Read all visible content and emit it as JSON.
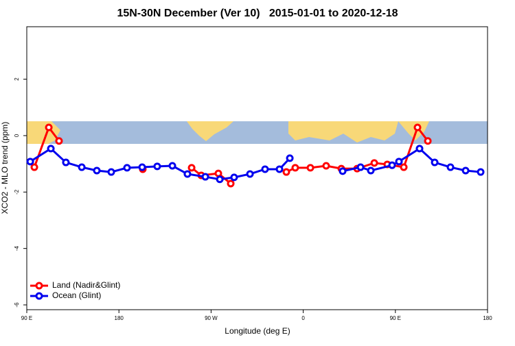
{
  "chart_data": {
    "type": "line",
    "title": "15N-30N December (Ver 10)   2015-01-01 to 2020-12-18",
    "x_label": "Longitude (deg E)",
    "y_label": "XCO2 - MLO trend (ppm)",
    "xlim": [
      90,
      540
    ],
    "ylim": [
      -6.17,
      3.86
    ],
    "xticks": [
      {
        "value": 90,
        "label": "90 E"
      },
      {
        "value": 180,
        "label": "180"
      },
      {
        "value": 270,
        "label": "90 W"
      },
      {
        "value": 360,
        "label": "0"
      },
      {
        "value": 450,
        "label": "90 E"
      },
      {
        "value": 540,
        "label": "180"
      }
    ],
    "yticks": [
      2,
      0,
      -2,
      -4,
      -6
    ],
    "legend": "bottom-left",
    "series": [
      {
        "name": "Land (Nadir&Glint)",
        "color": "#ff0000",
        "x": [
          97.4,
          111.5,
          121.5,
          null,
          203.3,
          null,
          251,
          260.4,
          277.1,
          289.2,
          null,
          343.5,
          352.2,
          367,
          382.4,
          397.2,
          412.6,
          429.4,
          442.1,
          458.2,
          471.6,
          481.7
        ],
        "values": [
          -1.12,
          0.29,
          -0.19,
          null,
          -1.19,
          null,
          -1.14,
          -1.41,
          -1.34,
          -1.7,
          null,
          -1.29,
          -1.14,
          -1.14,
          -1.07,
          -1.17,
          -1.17,
          -0.97,
          -1.02,
          -1.12,
          0.29,
          -0.19
        ]
      },
      {
        "name": "Ocean (Glint)",
        "color": "#0000ee",
        "x": [
          93.4,
          113.5,
          128.2,
          143.7,
          158.4,
          172.5,
          187.9,
          202.7,
          217.4,
          232.2,
          246.9,
          264.4,
          278.5,
          292.5,
          308,
          322.7,
          336.8,
          346.9,
          null,
          398.5,
          416,
          426,
          446.8,
          453.5,
          473.6,
          488.4,
          503.8,
          518.6,
          533.3
        ],
        "values": [
          -0.92,
          -0.46,
          -0.95,
          -1.12,
          -1.24,
          -1.29,
          -1.14,
          -1.12,
          -1.09,
          -1.07,
          -1.36,
          -1.46,
          -1.55,
          -1.48,
          -1.36,
          -1.19,
          -1.19,
          -0.8,
          null,
          -1.26,
          -1.12,
          -1.24,
          -1.05,
          -0.92,
          -0.46,
          -0.95,
          -1.12,
          -1.24,
          -1.29
        ]
      }
    ]
  }
}
